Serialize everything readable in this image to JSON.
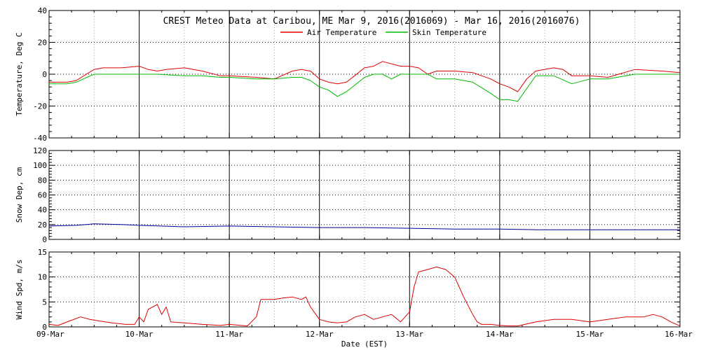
{
  "title": "CREST Meteo Data at Caribou, ME   Mar  9, 2016(2016069) - Mar 16, 2016(2016076)",
  "xlabel": "Date (EST)",
  "x_tick_labels": [
    "09-Mar",
    "10-Mar",
    "11-Mar",
    "12-Mar",
    "13-Mar",
    "14-Mar",
    "15-Mar",
    "16-Mar"
  ],
  "colors": {
    "air": "#dd0000",
    "skin": "#00bb00",
    "snow": "#000099",
    "wind": "#dd0000",
    "axis": "#000000",
    "grid": "#000000"
  },
  "chart_data": [
    {
      "type": "line",
      "ylabel": "Temperature, Deg C",
      "ylim": [
        -40,
        40
      ],
      "yticks": [
        -40,
        -20,
        0,
        20,
        40
      ],
      "xlim": [
        0,
        7
      ],
      "grid": true,
      "legend_position": "top-center",
      "series": [
        {
          "name": "Air Temperature",
          "x": [
            0,
            0.2,
            0.3,
            0.5,
            0.6,
            0.8,
            1.0,
            1.1,
            1.2,
            1.3,
            1.5,
            1.7,
            1.9,
            2.0,
            2.3,
            2.5,
            2.7,
            2.8,
            2.9,
            3.0,
            3.1,
            3.2,
            3.3,
            3.5,
            3.6,
            3.7,
            3.9,
            4.0,
            4.1,
            4.2,
            4.3,
            4.5,
            4.7,
            4.9,
            5.0,
            5.1,
            5.2,
            5.3,
            5.4,
            5.6,
            5.7,
            5.8,
            6.0,
            6.2,
            6.5,
            6.8,
            7.0
          ],
          "y": [
            -5,
            -5,
            -4,
            3,
            4,
            4,
            5,
            3,
            2,
            3,
            4,
            2,
            -1,
            -1,
            -2,
            -3,
            2,
            3,
            2,
            -3,
            -5,
            -6,
            -5,
            4,
            5,
            8,
            5,
            5,
            4,
            0,
            2,
            2,
            1,
            -3,
            -6,
            -8,
            -11,
            -3,
            2,
            4,
            3,
            -1,
            -1,
            -2,
            3,
            2,
            1
          ]
        },
        {
          "name": "Skin Temperature",
          "x": [
            0,
            0.2,
            0.3,
            0.5,
            0.6,
            0.8,
            1.0,
            1.2,
            1.5,
            1.7,
            1.9,
            2.0,
            2.3,
            2.5,
            2.7,
            2.8,
            2.9,
            3.0,
            3.1,
            3.2,
            3.3,
            3.5,
            3.6,
            3.7,
            3.8,
            3.9,
            4.0,
            4.2,
            4.3,
            4.5,
            4.7,
            4.9,
            5.0,
            5.1,
            5.2,
            5.3,
            5.4,
            5.6,
            5.8,
            6.0,
            6.2,
            6.5,
            7.0
          ],
          "y": [
            -6,
            -6,
            -5,
            0,
            0,
            0,
            0,
            0,
            -1,
            -1,
            -2,
            -2,
            -3,
            -3,
            -2,
            -2,
            -4,
            -8,
            -10,
            -14,
            -11,
            -2,
            0,
            0,
            -3,
            0,
            0,
            0,
            -3,
            -3,
            -5,
            -12,
            -16,
            -16,
            -17,
            -9,
            -1,
            -1,
            -6,
            -3,
            -3,
            0,
            0
          ]
        }
      ]
    },
    {
      "type": "line",
      "ylabel": "Snow Dep, cm",
      "ylim": [
        0,
        120
      ],
      "yticks": [
        0,
        20,
        40,
        60,
        80,
        100,
        120
      ],
      "xlim": [
        0,
        7
      ],
      "grid": true,
      "series": [
        {
          "x": [
            0,
            0.3,
            0.5,
            0.8,
            1.0,
            1.5,
            2.0,
            2.5,
            3.0,
            3.5,
            4.0,
            4.5,
            5.0,
            5.4,
            6.0,
            6.5,
            7.0
          ],
          "y": [
            18,
            19,
            21,
            20,
            19,
            17,
            18,
            17,
            16,
            16,
            15,
            14,
            14,
            13,
            13,
            13,
            13
          ]
        }
      ]
    },
    {
      "type": "line",
      "ylabel": "Wind Spd, m/s",
      "ylim": [
        0,
        15
      ],
      "yticks": [
        0,
        5,
        10,
        15
      ],
      "xlim": [
        0,
        7
      ],
      "grid": true,
      "series": [
        {
          "x": [
            0,
            0.1,
            0.2,
            0.35,
            0.45,
            0.55,
            0.7,
            0.85,
            0.95,
            1.0,
            1.05,
            1.1,
            1.2,
            1.25,
            1.3,
            1.35,
            1.5,
            1.7,
            1.9,
            2.0,
            2.2,
            2.3,
            2.35,
            2.5,
            2.6,
            2.7,
            2.8,
            2.85,
            2.9,
            3.0,
            3.1,
            3.2,
            3.3,
            3.4,
            3.5,
            3.6,
            3.7,
            3.8,
            3.9,
            4.0,
            4.05,
            4.1,
            4.2,
            4.3,
            4.4,
            4.5,
            4.6,
            4.7,
            4.75,
            4.8,
            4.9,
            5.0,
            5.1,
            5.2,
            5.4,
            5.6,
            5.8,
            6.0,
            6.2,
            6.4,
            6.6,
            6.7,
            6.8,
            6.9,
            7.0
          ],
          "y": [
            0.5,
            0.3,
            1.0,
            2.0,
            1.5,
            1.2,
            0.8,
            0.5,
            0.5,
            2.0,
            1.0,
            3.5,
            4.5,
            2.5,
            4.0,
            1.0,
            0.8,
            0.5,
            0.3,
            0.5,
            0.2,
            2.0,
            5.5,
            5.5,
            5.8,
            6.0,
            5.5,
            6.0,
            4.0,
            1.5,
            1.0,
            0.8,
            1.0,
            2.0,
            2.5,
            1.5,
            2.0,
            2.5,
            1.0,
            3.0,
            8.0,
            11.0,
            11.5,
            12.0,
            11.5,
            10.0,
            6.0,
            2.5,
            1.0,
            0.5,
            0.5,
            0.3,
            0.2,
            0.2,
            1.0,
            1.5,
            1.5,
            1.0,
            1.5,
            2.0,
            2.0,
            2.5,
            2.0,
            1.0,
            0.2
          ]
        }
      ]
    }
  ]
}
